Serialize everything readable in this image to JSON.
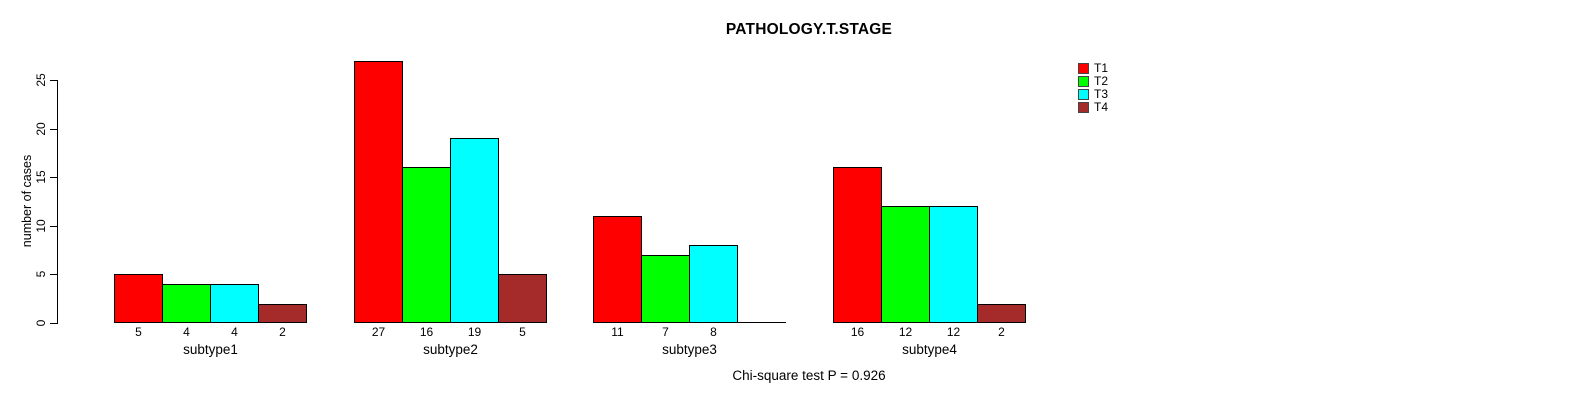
{
  "title": "PATHOLOGY.T.STAGE",
  "ylabel": "number of cases",
  "caption": "Chi-square test P = 0.926",
  "chart_data": {
    "type": "bar",
    "grouped": true,
    "title": "PATHOLOGY.T.STAGE",
    "xlabel": "",
    "ylabel": "number of cases",
    "categories": [
      "subtype1",
      "subtype2",
      "subtype3",
      "subtype4"
    ],
    "series": [
      {
        "name": "T1",
        "color": "#FF0000",
        "values": [
          5,
          27,
          11,
          16
        ]
      },
      {
        "name": "T2",
        "color": "#00FF00",
        "values": [
          4,
          16,
          7,
          12
        ]
      },
      {
        "name": "T3",
        "color": "#00FFFF",
        "values": [
          4,
          19,
          8,
          12
        ]
      },
      {
        "name": "T4",
        "color": "#A52A2A",
        "values": [
          2,
          5,
          0,
          2
        ]
      }
    ],
    "ylim": [
      0,
      25
    ],
    "yticks": [
      0,
      5,
      10,
      15,
      20,
      25
    ],
    "grid": false,
    "legend_position": "top-right",
    "bar_value_labels_shown": true,
    "zero_value_labels_hidden": true,
    "annotation": "Chi-square test P = 0.926",
    "background_color": "#FFFFFF",
    "bar_border_color": "#000000"
  }
}
